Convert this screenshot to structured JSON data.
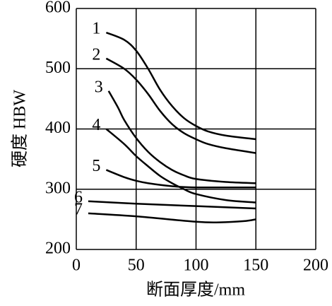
{
  "chart_data": {
    "type": "line",
    "x_label": "断面厚度/mm",
    "y_label": "硬度 HBW",
    "xlim": [
      0,
      200
    ],
    "ylim": [
      200,
      600
    ],
    "xticks": [
      0,
      50,
      100,
      150,
      200
    ],
    "yticks": [
      200,
      300,
      400,
      500,
      600
    ],
    "grid": true,
    "series": [
      {
        "name": "1",
        "color": "#000000",
        "x": [
          25,
          40,
          50,
          60,
          70,
          80,
          90,
          100,
          110,
          125,
          150
        ],
        "values": [
          560,
          548,
          530,
          500,
          465,
          438,
          418,
          405,
          396,
          389,
          383
        ]
      },
      {
        "name": "2",
        "color": "#000000",
        "x": [
          25,
          40,
          50,
          60,
          70,
          80,
          90,
          100,
          110,
          125,
          150
        ],
        "values": [
          517,
          500,
          482,
          458,
          430,
          408,
          393,
          383,
          375,
          368,
          360
        ]
      },
      {
        "name": "3",
        "color": "#000000",
        "x": [
          27,
          35,
          40,
          50,
          60,
          70,
          80,
          90,
          100,
          125,
          150
        ],
        "values": [
          463,
          435,
          415,
          385,
          362,
          345,
          332,
          323,
          317,
          312,
          310
        ]
      },
      {
        "name": "4",
        "color": "#000000",
        "x": [
          25,
          40,
          50,
          60,
          70,
          80,
          90,
          100,
          125,
          150
        ],
        "values": [
          400,
          375,
          355,
          338,
          322,
          310,
          300,
          292,
          282,
          278
        ]
      },
      {
        "name": "5",
        "color": "#000000",
        "x": [
          25,
          40,
          50,
          60,
          80,
          100,
          150
        ],
        "values": [
          332,
          320,
          314,
          310,
          305,
          303,
          303
        ]
      },
      {
        "name": "6",
        "color": "#000000",
        "x": [
          10,
          50,
          100,
          150
        ],
        "values": [
          280,
          276,
          272,
          268
        ]
      },
      {
        "name": "7",
        "color": "#000000",
        "x": [
          10,
          50,
          100,
          120,
          140,
          150
        ],
        "values": [
          260,
          255,
          246,
          245,
          247,
          250
        ]
      }
    ]
  }
}
